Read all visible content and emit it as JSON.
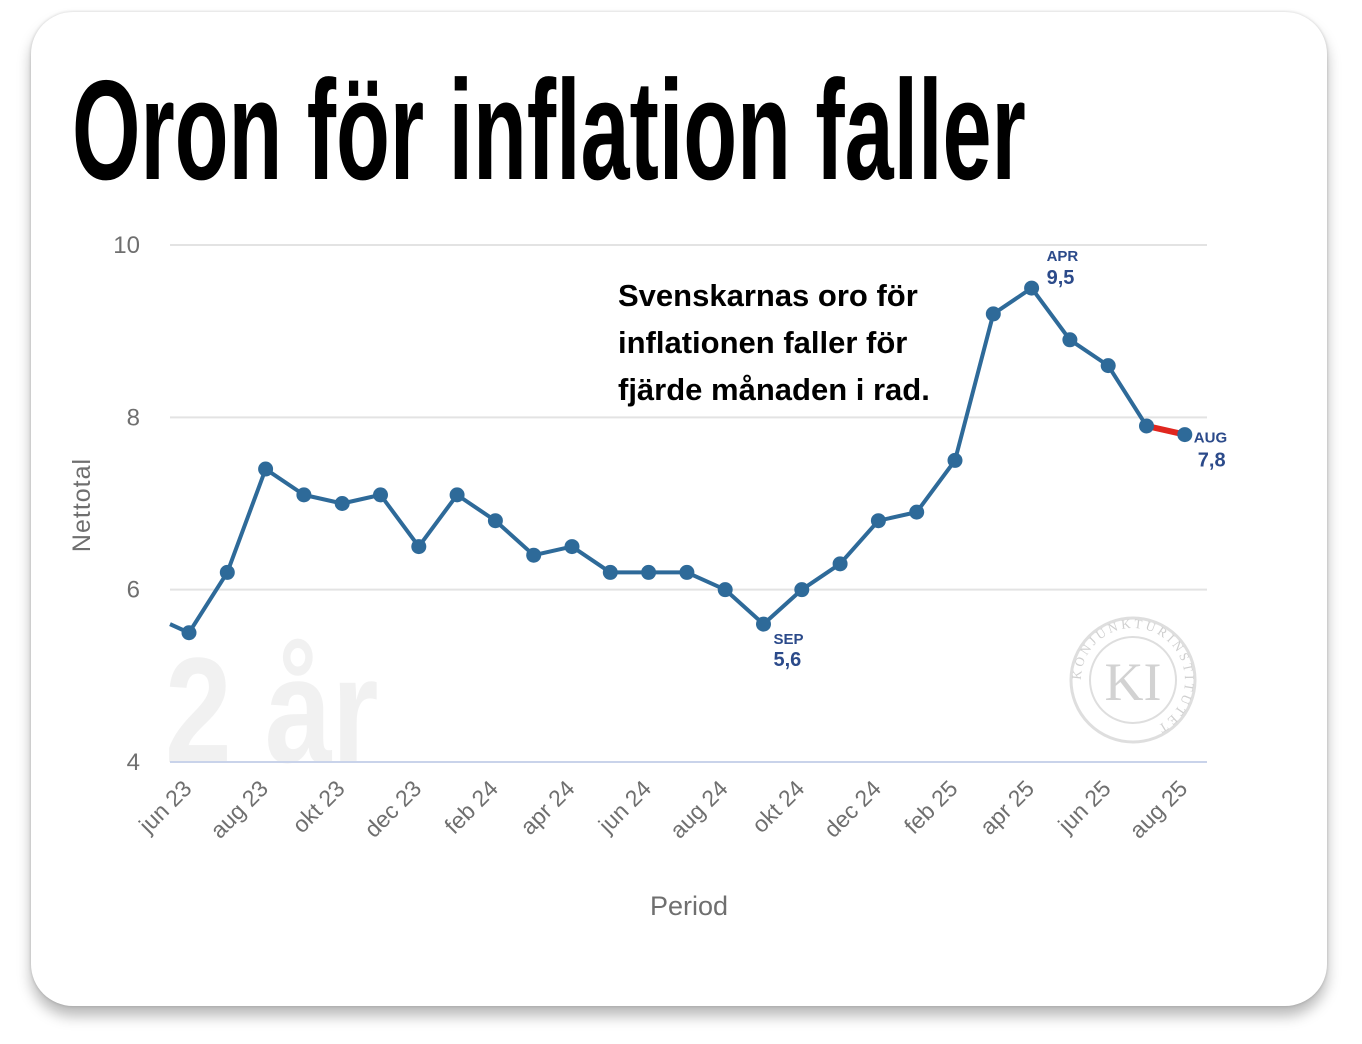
{
  "headline": "Oron för inflation faller",
  "annotation_lines": [
    "Svenskarnas oro för",
    "inflationen faller för",
    "fjärde månaden i rad."
  ],
  "watermark_text": "2 år",
  "logo": {
    "initials": "KI",
    "ring_text": "KONJUNKTURINSTITUTET"
  },
  "colors": {
    "line": "#2e6a99",
    "marker": "#2e6a99",
    "highlight": "#e0261f",
    "label": "#2b4a8a",
    "grid": "#e3e3e3",
    "axis": "#c9d3ea"
  },
  "chart_data": {
    "type": "line",
    "title": "Oron för inflation faller",
    "xlabel": "Period",
    "ylabel": "Nettotal",
    "ylim": [
      4,
      10
    ],
    "yticks": [
      "10",
      "8",
      "6",
      "4"
    ],
    "tick_labels": [
      "jun 23",
      "aug 23",
      "okt 23",
      "dec 23",
      "feb 24",
      "apr 24",
      "jun 24",
      "aug 24",
      "okt 24",
      "dec 24",
      "feb 25",
      "apr 25",
      "jun 25",
      "aug 25"
    ],
    "months": [
      "jun 23",
      "jul 23",
      "aug 23",
      "sep 23",
      "okt 23",
      "nov 23",
      "dec 23",
      "jan 24",
      "feb 24",
      "mar 24",
      "apr 24",
      "maj 24",
      "jun 24",
      "jul 24",
      "aug 24",
      "sep 24",
      "okt 24",
      "nov 24",
      "dec 24",
      "jan 25",
      "feb 25",
      "mar 25",
      "apr 25",
      "maj 25",
      "jun 25",
      "jul 25",
      "aug 25"
    ],
    "values": [
      5.5,
      6.2,
      7.4,
      7.1,
      7.0,
      7.1,
      6.5,
      7.1,
      6.8,
      6.4,
      6.5,
      6.2,
      6.2,
      6.2,
      6.0,
      5.6,
      6.0,
      6.3,
      6.8,
      6.9,
      7.5,
      9.2,
      9.5,
      8.9,
      8.6,
      7.9,
      7.8
    ],
    "lead_in_value": 5.6,
    "legend": "none",
    "grid": true,
    "annotations": [
      {
        "month": "sep 24",
        "label": "SEP",
        "value_text": "5,6"
      },
      {
        "month": "apr 25",
        "label": "APR",
        "value_text": "9,5"
      },
      {
        "month": "aug 25",
        "label": "AUG",
        "value_text": "7,8"
      }
    ],
    "highlight_segment": [
      "jul 25",
      "aug 25"
    ]
  }
}
